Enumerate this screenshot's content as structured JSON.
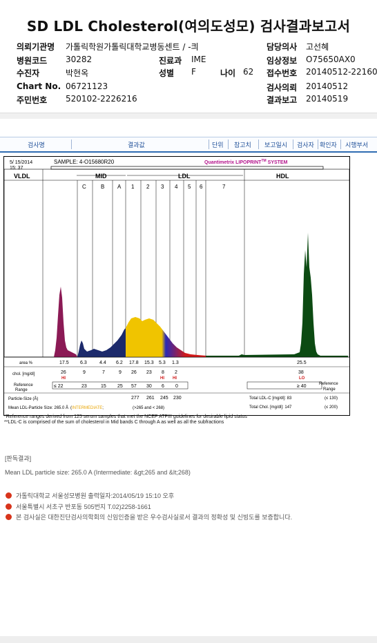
{
  "title": "SD LDL Cholesterol(여의도성모) 검사결과보고서",
  "info": {
    "org_label": "의뢰기관명",
    "org_value": "가톨릭학원가톨릭대학교병동센트 / -킈",
    "hospcode_label": "병원코드",
    "hospcode_value": "30282",
    "dept_label": "진료과",
    "dept_value": "IME",
    "patient_label": "수진자",
    "patient_value": "박현옥",
    "sex_label": "성별",
    "sex_value": "F",
    "age_label": "나이",
    "age_value": "62",
    "chart_label": "Chart No.",
    "chart_value": "06721123",
    "rrn_label": "주민번호",
    "rrn_value": "520102-2226216",
    "doctor_label": "담당의사",
    "doctor_value": "고선혜",
    "clinical_label": "임상정보",
    "clinical_value": "O75650AX0",
    "receipt_label": "접수번호",
    "receipt_value": "20140512-22160",
    "request_label": "검사의뢰",
    "request_value": "20140512",
    "report_label": "결과보고",
    "report_value": "20140519"
  },
  "tabs": [
    "검사명",
    "결과값",
    "단위",
    "참고치",
    "보고일시",
    "검사자",
    "확인자",
    "시행부서"
  ],
  "report": {
    "date": "5/ 15/2014",
    "time": "15: 37",
    "sample": "SAMPLE:   4-O15680R20",
    "brand": "Quantimetrix LIPOPRINT",
    "brand_tm": "TM",
    "brand_tail": " SYSTEM",
    "sections": {
      "vldl": "VLDL",
      "mid": "MID",
      "ldl": "LDL",
      "hdl": "HDL"
    },
    "bands": [
      "C",
      "B",
      "A",
      "1",
      "2",
      "3",
      "4",
      "5",
      "6",
      "7"
    ],
    "area_label": "area %",
    "area_values": [
      "17.5",
      "6.3",
      "4.4",
      "6.2",
      "17.8",
      "15.3",
      "5.3",
      "1.3",
      "25.5"
    ],
    "chol_label": "chol. [mg/dl]",
    "chol_values": [
      "26",
      "9",
      "7",
      "9",
      "26",
      "23",
      "8",
      "2",
      "38"
    ],
    "flags": [
      "HI",
      "HI",
      "HI",
      "LO"
    ],
    "ref_label1": "Reference",
    "ref_label2": "Range",
    "ref_values": [
      "≤ 22",
      "23",
      "15",
      "25",
      "57",
      "30",
      "6",
      "0",
      "≥ 40"
    ],
    "ref_right1": "Reference",
    "ref_right2": "Range",
    "ps_label": "Particle-Size (Å)",
    "ps_values": [
      "277",
      "261",
      "245",
      "230"
    ],
    "total_ldl_label": "Total LDL-C [mg/dl]:  83",
    "total_ldl_ref": "(≤ 130)",
    "mean_label": "Mean LDL-Particle Size:   265.0 Å",
    "mean_class": "INTERMEDIATE",
    "mean_tail": "(>265 and < 268)",
    "total_chol_label": "Total Chol. [mg/dl]:   147",
    "total_chol_ref": "(≤ 200)"
  },
  "notes": [
    "*Reference ranges derived from 125 serum samples that met the NCEP ATPIII guidelines for desirable lipid status",
    "**LDL-C is comprised of the sum of cholesterol in Mid bands C through A as well as all the subfractions"
  ],
  "result_header": "[판독결과]",
  "result_text": "Mean LDL particle size: 265.0 A  (Intermediate: &gt;265 and &lt;268)",
  "footer": [
    "가톨릭대학교 서울성모병원        출력일자:2014/05/19 15:10 오후",
    "서울특별시 서초구 반포동 505번지 T.02)2258-1661",
    "본 검사실은 대한진단검사의학회의 신임인증을 받은 우수검사실로서 결과의 정확성 및 신빙도를 보증합니다."
  ],
  "colors": {
    "vldl": "#8b1a55",
    "mid": "#1c2a6b",
    "ldl1": "#f0c400",
    "ldl2": "#2a2ab6",
    "ldl3": "#d21a1a",
    "hdl": "#0c4a12",
    "accent": "#2f6bb1"
  }
}
